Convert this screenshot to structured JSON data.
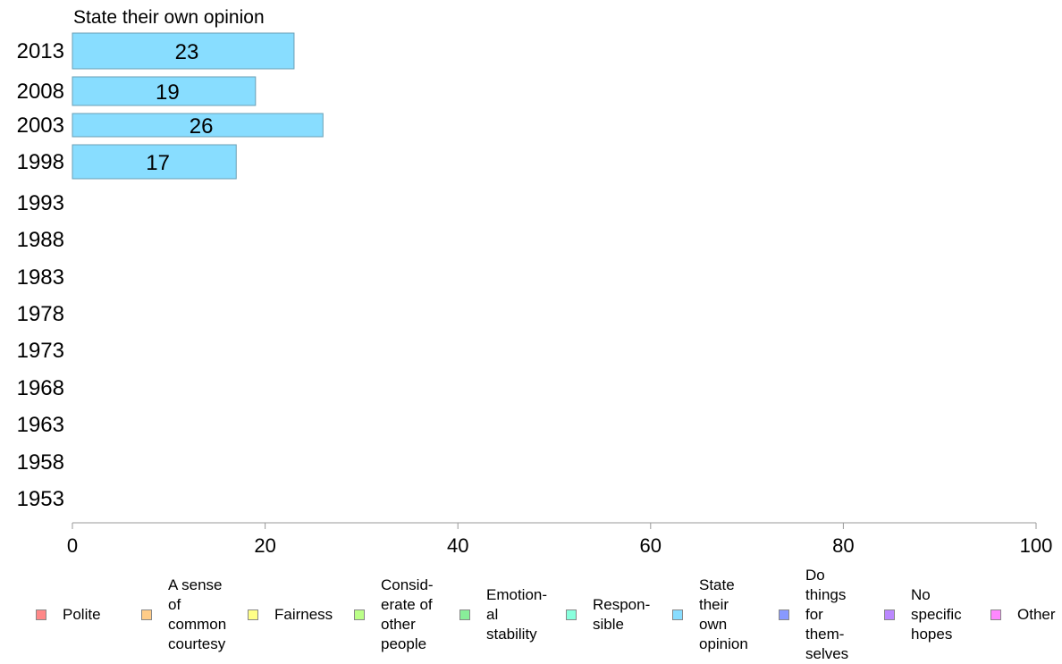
{
  "chart_data": {
    "type": "bar",
    "orientation": "horizontal",
    "title": "State their own opinion",
    "xlabel": "",
    "ylabel": "",
    "categories": [
      "2013",
      "2008",
      "2003",
      "1998",
      "1993",
      "1988",
      "1983",
      "1978",
      "1973",
      "1968",
      "1963",
      "1958",
      "1953"
    ],
    "series": [
      {
        "name": "State their own opinion",
        "values": [
          23,
          19,
          26,
          17,
          null,
          null,
          null,
          null,
          null,
          null,
          null,
          null,
          null
        ]
      }
    ],
    "data_labels": [
      "23",
      "19",
      "26",
      "17"
    ],
    "xlim": [
      0,
      100
    ],
    "x_ticks": [
      "0",
      "20",
      "40",
      "60",
      "80",
      "100"
    ],
    "grid": false,
    "bar_color": "#88ddff",
    "legend_position": "bottom",
    "legend": [
      {
        "label": "Polite",
        "color": "#ff8888"
      },
      {
        "label": "A sense\nof\ncommon\ncourtesy",
        "color": "#ffcc88"
      },
      {
        "label": "Fairness",
        "color": "#ffff88"
      },
      {
        "label": "Consid-\nerate of\nother\npeople",
        "color": "#bbff88"
      },
      {
        "label": "Emotion-\nal\nstability",
        "color": "#88ee99"
      },
      {
        "label": "Respon-\nsible",
        "color": "#88ffdd"
      },
      {
        "label": "State\ntheir\nown\nopinion",
        "color": "#88ddff"
      },
      {
        "label": "Do\nthings\nfor\nthem-\nselves",
        "color": "#8899ff"
      },
      {
        "label": "No\nspecific\nhopes",
        "color": "#bb88ff"
      },
      {
        "label": "Other",
        "color": "#ff88ff"
      }
    ]
  }
}
